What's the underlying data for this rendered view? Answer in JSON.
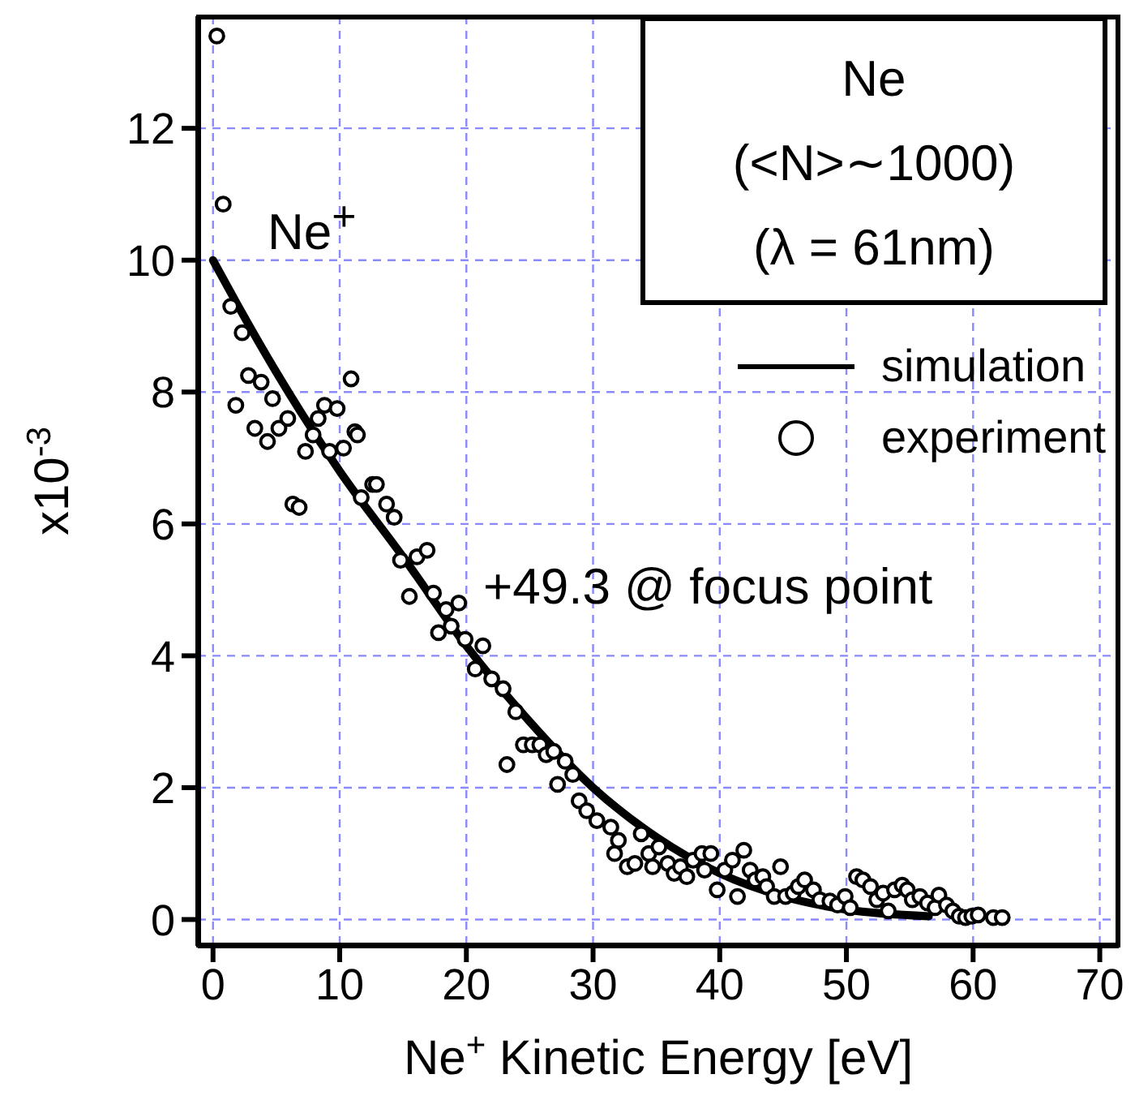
{
  "chart_data": {
    "type": "scatter",
    "xlabel": "Ne$^{+}$ Kinetic Energy [eV]",
    "ylabel": "x10$^{-3}$",
    "annotations": [
      "Ne",
      "(<N>∼1000)",
      "(λ = 61nm)",
      "Ne$^{+}$",
      "+49.3 @ focus point"
    ],
    "xlim": [
      -1.2,
      71.5
    ],
    "ylim": [
      -0.4,
      13.7
    ],
    "xticks": [
      0,
      10,
      20,
      30,
      40,
      50,
      60,
      70
    ],
    "yticks": [
      0,
      2,
      4,
      6,
      8,
      10,
      12
    ],
    "grid": true,
    "legend": "top right",
    "series": [
      {
        "name": "simulation",
        "type": "line",
        "color": "#000000",
        "marker": "none",
        "line_style": "solid",
        "x": [
          0,
          2,
          5,
          10,
          15,
          20,
          25,
          30,
          35,
          40,
          45,
          50,
          56.5
        ],
        "values": [
          10,
          9.3,
          8.3,
          6.8,
          5.5,
          4.15,
          3.0,
          2.0,
          1.25,
          0.7,
          0.35,
          0.15,
          0.05
        ]
      },
      {
        "name": "experiment",
        "color": "#000000",
        "marker": "circle",
        "x": [
          0.3,
          0.8,
          1.4,
          2.3,
          2.8,
          1.8,
          3.8,
          3.3,
          4.3,
          4.7,
          5.2,
          5.9,
          7.3,
          7.9,
          8.3,
          8.8,
          9.2,
          9.8,
          10.3,
          10.9,
          11.2,
          11.4,
          11.7,
          12.6,
          12.9,
          6.3,
          6.8,
          13.7,
          14.3,
          14.8,
          15.5,
          16.1,
          16.9,
          17.4,
          17.8,
          18.4,
          18.8,
          19.4,
          19.9,
          20.7,
          21.3,
          22.0,
          22.9,
          23.2,
          23.9,
          24.5,
          25.2,
          25.8,
          26.3,
          26.9,
          27.2,
          27.8,
          28.4,
          28.9,
          29.5,
          30.3,
          31.4,
          31.7,
          32.0,
          32.7,
          33.3,
          33.8,
          34.4,
          34.7,
          35.2,
          35.9,
          36.4,
          36.9,
          37.4,
          37.9,
          38.6,
          38.8,
          39.3,
          39.8,
          40.4,
          41.0,
          41.4,
          41.9,
          42.4,
          42.8,
          43.4,
          43.7,
          44.3,
          44.8,
          45.2,
          45.8,
          46.2,
          46.7,
          47.4,
          47.9,
          48.7,
          49.3,
          49.9,
          50.3,
          50.8,
          51.3,
          51.9,
          52.4,
          52.9,
          53.3,
          53.8,
          54.4,
          54.8,
          55.2,
          55.8,
          56.4,
          57.0,
          57.3,
          57.9,
          58.4,
          58.9,
          59.4,
          59.9,
          60.4,
          61.6,
          62.3
        ],
        "values": [
          13.4,
          10.85,
          9.3,
          8.9,
          8.25,
          7.8,
          8.15,
          7.45,
          7.25,
          7.9,
          7.45,
          7.6,
          7.1,
          7.35,
          7.6,
          7.8,
          7.1,
          7.75,
          7.15,
          8.2,
          7.4,
          7.35,
          6.4,
          6.6,
          6.6,
          6.3,
          6.25,
          6.3,
          6.1,
          5.45,
          4.9,
          5.5,
          5.6,
          4.95,
          4.35,
          4.7,
          4.45,
          4.8,
          4.25,
          3.8,
          4.15,
          3.65,
          3.5,
          2.35,
          3.15,
          2.65,
          2.65,
          2.65,
          2.5,
          2.55,
          2.05,
          2.4,
          2.2,
          1.8,
          1.65,
          1.5,
          1.4,
          1.0,
          1.2,
          0.8,
          0.85,
          1.3,
          1.0,
          0.8,
          1.1,
          0.85,
          0.7,
          0.8,
          0.65,
          0.9,
          1.0,
          0.75,
          1.0,
          0.45,
          0.75,
          0.9,
          0.35,
          1.05,
          0.75,
          0.6,
          0.65,
          0.5,
          0.35,
          0.8,
          0.35,
          0.4,
          0.5,
          0.6,
          0.45,
          0.3,
          0.28,
          0.22,
          0.35,
          0.18,
          0.65,
          0.6,
          0.5,
          0.3,
          0.4,
          0.13,
          0.45,
          0.52,
          0.45,
          0.3,
          0.35,
          0.25,
          0.18,
          0.37,
          0.22,
          0.13,
          0.05,
          0.03,
          0.05,
          0.07,
          0.03,
          0.03
        ]
      }
    ]
  }
}
